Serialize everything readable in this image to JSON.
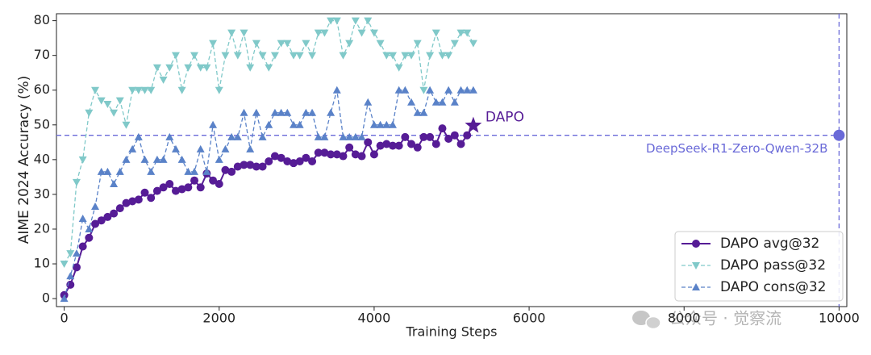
{
  "chart_data": {
    "type": "line",
    "xlabel": "Training Steps",
    "ylabel": "AIME 2024 Accuracy (%)",
    "x": [
      0,
      80,
      160,
      240,
      320,
      400,
      480,
      560,
      640,
      720,
      800,
      880,
      960,
      1040,
      1120,
      1200,
      1280,
      1360,
      1440,
      1520,
      1600,
      1680,
      1760,
      1840,
      1920,
      2000,
      2080,
      2160,
      2240,
      2320,
      2400,
      2480,
      2560,
      2640,
      2720,
      2800,
      2880,
      2960,
      3040,
      3120,
      3200,
      3280,
      3360,
      3440,
      3520,
      3600,
      3680,
      3760,
      3840,
      3920,
      4000,
      4080,
      4160,
      4240,
      4320,
      4400,
      4480,
      4560,
      4640,
      4720,
      4800,
      4880,
      4960,
      5040,
      5120,
      5200,
      5280
    ],
    "series": [
      {
        "name": "DAPO avg@32",
        "color": "#561c96",
        "marker": "circle",
        "dash": false,
        "last_marker": "star",
        "values": [
          1,
          4,
          9,
          15,
          17.5,
          21.5,
          22.5,
          23.5,
          24.5,
          26,
          27.5,
          28,
          28.5,
          30.5,
          29,
          31,
          32,
          33,
          31,
          31.5,
          32,
          34,
          32,
          36,
          34,
          33,
          37,
          36.5,
          38,
          38.5,
          38.5,
          38,
          38,
          39.5,
          41,
          40.5,
          39.5,
          39,
          39.5,
          40.5,
          39.5,
          42,
          42,
          41.5,
          41.5,
          41,
          43.5,
          41.5,
          41,
          45,
          41.5,
          44,
          44.5,
          44,
          44,
          46.5,
          44.5,
          43.5,
          46.5,
          46.5,
          44.5,
          49,
          46,
          47,
          44.5,
          47,
          49.8
        ]
      },
      {
        "name": "DAPO pass@32",
        "color": "#80c9c9",
        "marker": "triangle-down",
        "dash": true,
        "values": [
          10,
          13,
          33.5,
          40,
          53.5,
          60,
          57,
          56,
          53.5,
          57,
          50,
          60,
          60,
          60,
          60,
          66.5,
          63,
          66.5,
          70,
          60,
          66.5,
          70,
          66.5,
          66.5,
          73.5,
          60,
          70,
          76.5,
          70,
          76.5,
          66.5,
          73.5,
          70,
          66.5,
          70,
          73.5,
          73.5,
          70,
          70,
          73.5,
          70,
          76.5,
          76.5,
          80,
          80,
          70,
          73.5,
          80,
          76.5,
          80,
          76.5,
          73.5,
          70,
          70,
          66.5,
          70,
          70,
          73.5,
          60,
          70,
          76.5,
          70,
          70,
          73.5,
          76.5,
          76.5,
          73.5
        ]
      },
      {
        "name": "DAPO cons@32",
        "color": "#5a82c8",
        "marker": "triangle-up",
        "dash": true,
        "values": [
          0,
          6.5,
          13,
          23,
          20,
          26.5,
          36.5,
          36.5,
          33,
          36.5,
          40,
          43,
          46.5,
          40,
          36.5,
          40,
          40,
          46.5,
          43,
          40,
          36.5,
          36.5,
          43,
          36.5,
          50,
          40,
          43,
          46.5,
          46.5,
          53.5,
          43,
          53.5,
          46.5,
          50,
          53.5,
          53.5,
          53.5,
          50,
          50,
          53.5,
          53.5,
          46.5,
          46.5,
          53.5,
          60,
          46.5,
          46.5,
          46.5,
          46.5,
          56.5,
          50,
          50,
          50,
          50,
          60,
          60,
          56.5,
          53.5,
          53.5,
          60,
          56.5,
          56.5,
          60,
          56.5,
          60,
          60,
          60
        ]
      }
    ],
    "annotations": [
      {
        "text": "DAPO",
        "x": 5280,
        "y": 49.8,
        "color": "#561c96"
      }
    ],
    "reference": {
      "text": "DeepSeek-R1-Zero-Qwen-32B",
      "x": 10000,
      "y": 47,
      "color": "#6a6ad8"
    },
    "xlim": [
      -100,
      10100
    ],
    "ylim": [
      -2.3,
      82
    ],
    "xticks": [
      0,
      2000,
      4000,
      6000,
      8000,
      10000
    ],
    "yticks": [
      0,
      10,
      20,
      30,
      40,
      50,
      60,
      70,
      80
    ],
    "legend": "lower right",
    "grid": false
  },
  "watermark": "公众号 · 觉察流"
}
